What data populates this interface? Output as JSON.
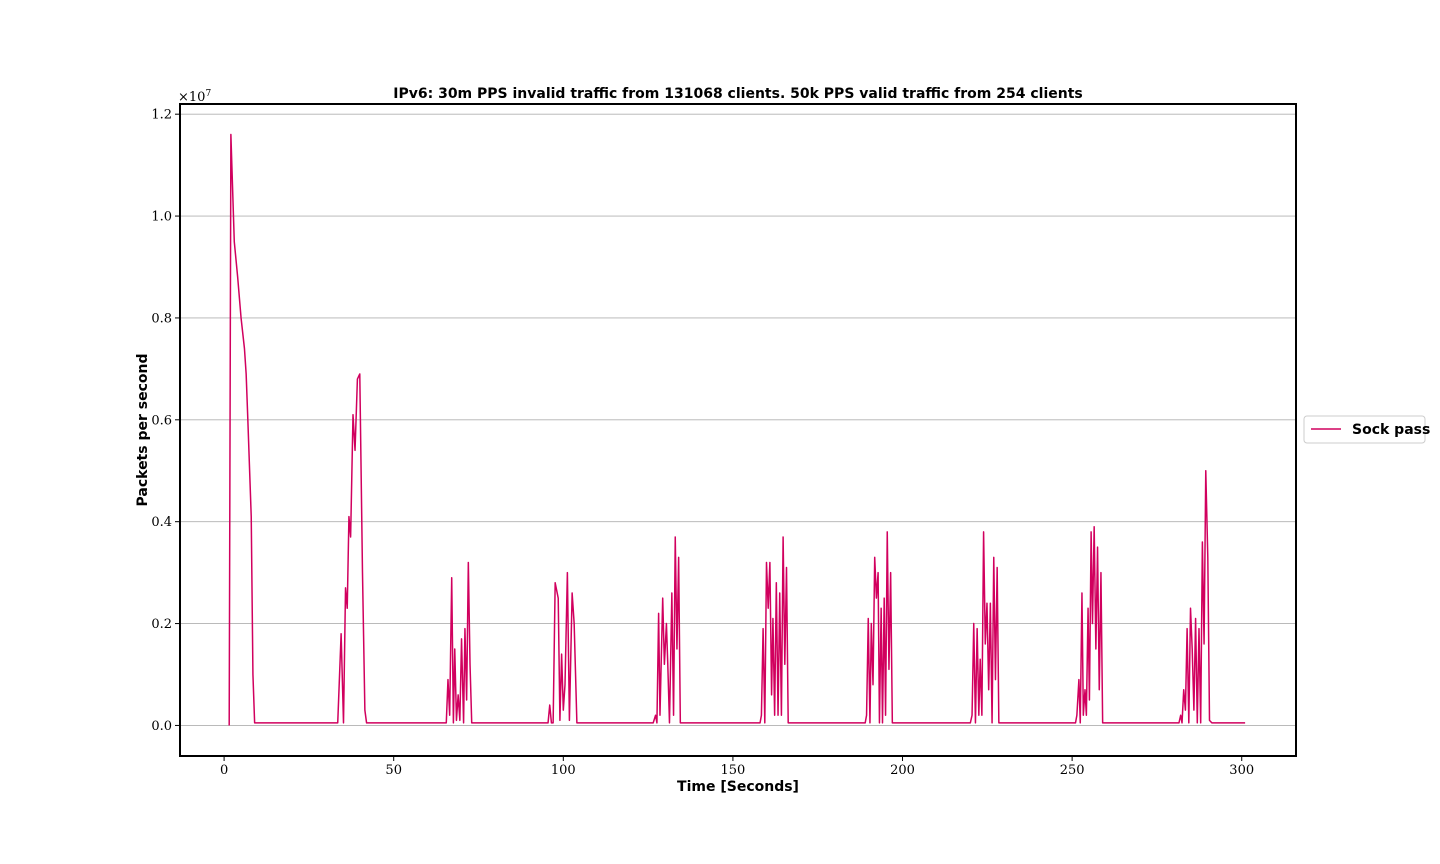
{
  "chart_data": {
    "type": "line",
    "title": "IPv6: 30m PPS invalid traffic from 131068 clients. 50k PPS valid traffic from 254 clients",
    "xlabel": "Time [Seconds]",
    "ylabel": "Packets per second",
    "y_scale_label": "×10",
    "y_scale_exponent": "7",
    "xlim": [
      -13,
      316
    ],
    "ylim": [
      -0.06,
      1.22
    ],
    "x_ticks": [
      0,
      50,
      100,
      150,
      200,
      250,
      300
    ],
    "y_ticks": [
      0.0,
      0.2,
      0.4,
      0.6,
      0.8,
      1.0,
      1.2
    ],
    "y_tick_labels": [
      "0.0",
      "0.2",
      "0.4",
      "0.6",
      "0.8",
      "1.0",
      "1.2"
    ],
    "grid": "horizontal",
    "legend_position": "right",
    "series": [
      {
        "name": "Sock pass",
        "color": "#d1005e",
        "points": [
          [
            1.5,
            0.0
          ],
          [
            2.0,
            1.16
          ],
          [
            3.0,
            0.95
          ],
          [
            4.0,
            0.88
          ],
          [
            5.0,
            0.8
          ],
          [
            6.0,
            0.74
          ],
          [
            6.5,
            0.69
          ],
          [
            7.0,
            0.6
          ],
          [
            8.0,
            0.41
          ],
          [
            8.5,
            0.1
          ],
          [
            9.0,
            0.005
          ],
          [
            33.5,
            0.005
          ],
          [
            34.5,
            0.18
          ],
          [
            35.2,
            0.005
          ],
          [
            35.8,
            0.27
          ],
          [
            36.3,
            0.23
          ],
          [
            36.8,
            0.41
          ],
          [
            37.3,
            0.37
          ],
          [
            38.0,
            0.61
          ],
          [
            38.6,
            0.54
          ],
          [
            39.3,
            0.68
          ],
          [
            40.0,
            0.69
          ],
          [
            40.8,
            0.3
          ],
          [
            41.5,
            0.03
          ],
          [
            42.0,
            0.005
          ],
          [
            65.5,
            0.005
          ],
          [
            66.0,
            0.09
          ],
          [
            66.5,
            0.02
          ],
          [
            67.1,
            0.29
          ],
          [
            67.6,
            0.005
          ],
          [
            68.0,
            0.15
          ],
          [
            68.5,
            0.01
          ],
          [
            69.0,
            0.06
          ],
          [
            69.5,
            0.01
          ],
          [
            70.0,
            0.17
          ],
          [
            70.6,
            0.005
          ],
          [
            71.0,
            0.19
          ],
          [
            71.5,
            0.05
          ],
          [
            72.0,
            0.32
          ],
          [
            72.5,
            0.12
          ],
          [
            73.0,
            0.005
          ],
          [
            95.5,
            0.005
          ],
          [
            96.0,
            0.04
          ],
          [
            96.5,
            0.005
          ],
          [
            97.0,
            0.005
          ],
          [
            97.6,
            0.28
          ],
          [
            98.5,
            0.25
          ],
          [
            99.0,
            0.01
          ],
          [
            99.5,
            0.14
          ],
          [
            100.0,
            0.03
          ],
          [
            100.5,
            0.08
          ],
          [
            101.2,
            0.3
          ],
          [
            101.8,
            0.01
          ],
          [
            102.6,
            0.26
          ],
          [
            103.2,
            0.2
          ],
          [
            104.0,
            0.005
          ],
          [
            126.5,
            0.005
          ],
          [
            127.2,
            0.02
          ],
          [
            127.6,
            0.005
          ],
          [
            128.1,
            0.22
          ],
          [
            128.5,
            0.02
          ],
          [
            129.3,
            0.25
          ],
          [
            129.8,
            0.12
          ],
          [
            130.4,
            0.2
          ],
          [
            130.8,
            0.12
          ],
          [
            131.3,
            0.005
          ],
          [
            132.0,
            0.26
          ],
          [
            132.5,
            0.02
          ],
          [
            133.0,
            0.37
          ],
          [
            133.5,
            0.15
          ],
          [
            134.0,
            0.33
          ],
          [
            134.5,
            0.005
          ],
          [
            158.0,
            0.005
          ],
          [
            158.4,
            0.02
          ],
          [
            158.9,
            0.19
          ],
          [
            159.4,
            0.005
          ],
          [
            159.9,
            0.32
          ],
          [
            160.4,
            0.23
          ],
          [
            160.9,
            0.32
          ],
          [
            161.4,
            0.06
          ],
          [
            161.8,
            0.21
          ],
          [
            162.3,
            0.02
          ],
          [
            162.8,
            0.28
          ],
          [
            163.3,
            0.02
          ],
          [
            163.8,
            0.26
          ],
          [
            164.3,
            0.02
          ],
          [
            164.8,
            0.37
          ],
          [
            165.3,
            0.12
          ],
          [
            165.8,
            0.31
          ],
          [
            166.3,
            0.005
          ],
          [
            189.0,
            0.005
          ],
          [
            189.4,
            0.02
          ],
          [
            189.9,
            0.21
          ],
          [
            190.4,
            0.005
          ],
          [
            190.8,
            0.2
          ],
          [
            191.3,
            0.08
          ],
          [
            191.8,
            0.33
          ],
          [
            192.3,
            0.25
          ],
          [
            192.8,
            0.3
          ],
          [
            193.2,
            0.005
          ],
          [
            193.7,
            0.23
          ],
          [
            194.1,
            0.005
          ],
          [
            194.6,
            0.25
          ],
          [
            195.0,
            0.02
          ],
          [
            195.5,
            0.38
          ],
          [
            196.0,
            0.11
          ],
          [
            196.5,
            0.3
          ],
          [
            197.0,
            0.005
          ],
          [
            220.0,
            0.005
          ],
          [
            220.5,
            0.02
          ],
          [
            221.0,
            0.2
          ],
          [
            221.5,
            0.005
          ],
          [
            222.0,
            0.19
          ],
          [
            222.5,
            0.02
          ],
          [
            222.9,
            0.13
          ],
          [
            223.4,
            0.02
          ],
          [
            223.9,
            0.38
          ],
          [
            224.4,
            0.16
          ],
          [
            224.9,
            0.24
          ],
          [
            225.4,
            0.07
          ],
          [
            225.9,
            0.24
          ],
          [
            226.4,
            0.005
          ],
          [
            226.9,
            0.33
          ],
          [
            227.4,
            0.09
          ],
          [
            227.9,
            0.31
          ],
          [
            228.4,
            0.005
          ],
          [
            251.0,
            0.005
          ],
          [
            251.4,
            0.02
          ],
          [
            252.0,
            0.09
          ],
          [
            252.4,
            0.005
          ],
          [
            252.9,
            0.26
          ],
          [
            253.3,
            0.02
          ],
          [
            253.8,
            0.07
          ],
          [
            254.2,
            0.02
          ],
          [
            254.7,
            0.23
          ],
          [
            255.1,
            0.05
          ],
          [
            255.6,
            0.38
          ],
          [
            256.0,
            0.2
          ],
          [
            256.5,
            0.39
          ],
          [
            257.0,
            0.15
          ],
          [
            257.5,
            0.35
          ],
          [
            258.0,
            0.07
          ],
          [
            258.5,
            0.3
          ],
          [
            259.0,
            0.005
          ],
          [
            281.5,
            0.005
          ],
          [
            282.0,
            0.02
          ],
          [
            282.4,
            0.005
          ],
          [
            282.9,
            0.07
          ],
          [
            283.4,
            0.03
          ],
          [
            283.9,
            0.19
          ],
          [
            284.4,
            0.005
          ],
          [
            284.9,
            0.23
          ],
          [
            285.4,
            0.15
          ],
          [
            285.9,
            0.03
          ],
          [
            286.4,
            0.21
          ],
          [
            286.9,
            0.005
          ],
          [
            287.4,
            0.19
          ],
          [
            287.9,
            0.005
          ],
          [
            288.4,
            0.36
          ],
          [
            288.9,
            0.16
          ],
          [
            289.4,
            0.5
          ],
          [
            290.0,
            0.33
          ],
          [
            290.5,
            0.01
          ],
          [
            291.2,
            0.005
          ],
          [
            301.0,
            0.005
          ]
        ]
      }
    ]
  }
}
